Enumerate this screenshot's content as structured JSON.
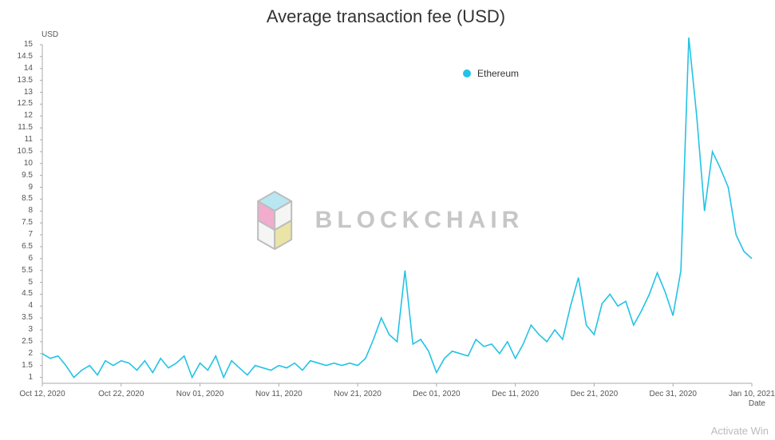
{
  "title": "Average transaction fee (USD)",
  "y_axis_label": "USD",
  "x_axis_label": "Date",
  "legend": {
    "label": "Ethereum",
    "dot_color": "#22c3e6"
  },
  "watermark_text": "BLOCKCHAIR",
  "activate_text": "Activate Win",
  "chart": {
    "type": "line",
    "line_color": "#22c3e6",
    "line_width": 1.6,
    "background_color": "#ffffff",
    "axis_color": "#aaaaaa",
    "tick_color": "#aaaaaa",
    "tick_font_size": 10,
    "ylim": [
      0.75,
      15
    ],
    "ytick_step": 0.5,
    "yticks": [
      1,
      1.5,
      2,
      2.5,
      3,
      3.5,
      4,
      4.5,
      5,
      5.5,
      6,
      6.5,
      7,
      7.5,
      8,
      8.5,
      9,
      9.5,
      10,
      10.5,
      11,
      11.5,
      12,
      12.5,
      13,
      13.5,
      14,
      14.5,
      15
    ],
    "xticks": [
      "Oct 12, 2020",
      "Oct 22, 2020",
      "Nov 01, 2020",
      "Nov 11, 2020",
      "Nov 21, 2020",
      "Dec 01, 2020",
      "Dec 11, 2020",
      "Dec 21, 2020",
      "Dec 31, 2020",
      "Jan 10, 2021"
    ],
    "xtick_indices": [
      0,
      10,
      20,
      30,
      40,
      50,
      60,
      70,
      80,
      90
    ],
    "x_count": 91,
    "values": [
      2.0,
      1.8,
      1.9,
      1.5,
      1.0,
      1.3,
      1.5,
      1.1,
      1.7,
      1.5,
      1.7,
      1.6,
      1.3,
      1.7,
      1.2,
      1.8,
      1.4,
      1.6,
      1.9,
      1.0,
      1.6,
      1.3,
      1.9,
      1.0,
      1.7,
      1.4,
      1.1,
      1.5,
      1.4,
      1.3,
      1.5,
      1.4,
      1.6,
      1.3,
      1.7,
      1.6,
      1.5,
      1.6,
      1.5,
      1.6,
      1.5,
      1.8,
      2.6,
      3.5,
      2.8,
      2.5,
      5.5,
      2.4,
      2.6,
      2.1,
      1.2,
      1.8,
      2.1,
      2.0,
      1.9,
      2.6,
      2.3,
      2.4,
      2.0,
      2.5,
      1.8,
      2.4,
      3.2,
      2.8,
      2.5,
      3.0,
      2.6,
      4.0,
      5.2,
      3.2,
      2.8,
      4.1,
      4.5,
      4.0,
      4.2,
      3.2,
      3.8,
      4.5,
      5.4,
      4.6,
      3.6,
      5.5,
      15.3,
      12.0,
      8.0,
      10.5,
      9.8,
      9.0,
      7.0,
      6.3,
      6.0
    ]
  },
  "watermark_logo": {
    "cube_colors": {
      "top": "#7fd4e6",
      "left": "#e86aa6",
      "right": "#d9cf5f",
      "outline": "#888888"
    }
  }
}
